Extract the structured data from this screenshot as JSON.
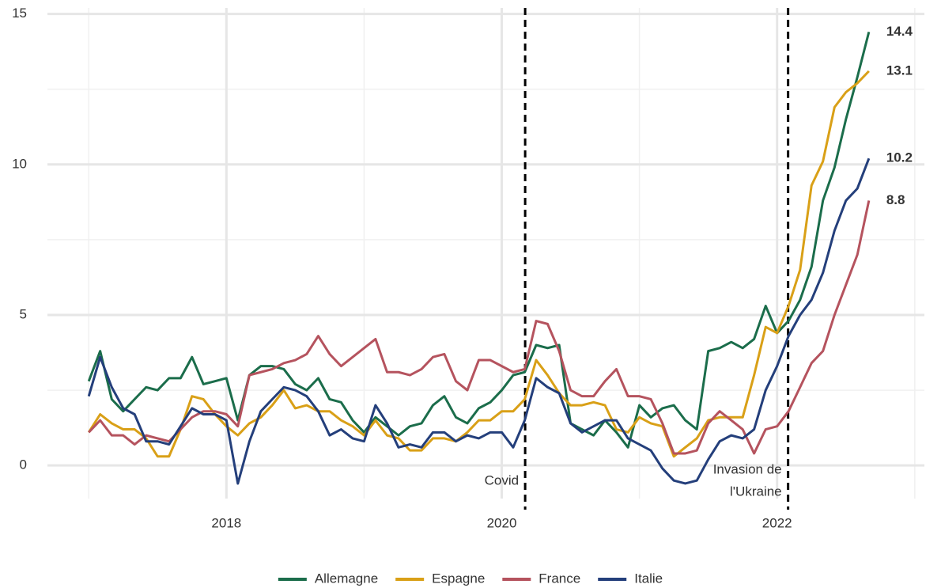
{
  "chart_data": {
    "type": "line",
    "x": [
      2017,
      2017.083,
      2017.167,
      2017.25,
      2017.333,
      2017.417,
      2017.5,
      2017.583,
      2017.667,
      2017.75,
      2017.833,
      2017.917,
      2018,
      2018.083,
      2018.167,
      2018.25,
      2018.333,
      2018.417,
      2018.5,
      2018.583,
      2018.667,
      2018.75,
      2018.833,
      2018.917,
      2019,
      2019.083,
      2019.167,
      2019.25,
      2019.333,
      2019.417,
      2019.5,
      2019.583,
      2019.667,
      2019.75,
      2019.833,
      2019.917,
      2020,
      2020.083,
      2020.167,
      2020.25,
      2020.333,
      2020.417,
      2020.5,
      2020.583,
      2020.667,
      2020.75,
      2020.833,
      2020.917,
      2021,
      2021.083,
      2021.167,
      2021.25,
      2021.333,
      2021.417,
      2021.5,
      2021.583,
      2021.667,
      2021.75,
      2021.833,
      2021.917,
      2022,
      2022.083,
      2022.167,
      2022.25,
      2022.333,
      2022.417,
      2022.5,
      2022.583,
      2022.667
    ],
    "series": [
      {
        "name": "Allemagne",
        "color": "#1b6d4b",
        "values": [
          2.8,
          3.8,
          2.2,
          1.8,
          2.2,
          2.6,
          2.5,
          2.9,
          2.9,
          3.6,
          2.7,
          2.8,
          2.9,
          1.5,
          3.0,
          3.3,
          3.3,
          3.2,
          2.7,
          2.5,
          2.9,
          2.2,
          2.1,
          1.5,
          1.1,
          1.6,
          1.3,
          1.0,
          1.3,
          1.4,
          2.0,
          2.3,
          1.6,
          1.4,
          1.9,
          2.1,
          2.5,
          3.0,
          3.1,
          4.0,
          3.9,
          4.0,
          1.4,
          1.2,
          1.0,
          1.5,
          1.1,
          0.6,
          2.0,
          1.6,
          1.9,
          2.0,
          1.5,
          1.2,
          3.8,
          3.9,
          4.1,
          3.9,
          4.2,
          5.3,
          4.4,
          4.8,
          5.5,
          6.6,
          8.8,
          9.9,
          11.5,
          12.9,
          14.4
        ]
      },
      {
        "name": "Espagne",
        "color": "#d9a017",
        "values": [
          1.1,
          1.7,
          1.4,
          1.2,
          1.2,
          0.9,
          0.3,
          0.3,
          1.2,
          2.3,
          2.2,
          1.7,
          1.3,
          1.0,
          1.4,
          1.6,
          2.0,
          2.5,
          1.9,
          2.0,
          1.8,
          1.8,
          1.5,
          1.3,
          1.0,
          1.5,
          1.0,
          0.9,
          0.5,
          0.5,
          0.9,
          0.9,
          0.8,
          1.1,
          1.5,
          1.5,
          1.8,
          1.8,
          2.2,
          3.5,
          3.0,
          2.4,
          2.0,
          2.0,
          2.1,
          2.0,
          1.2,
          1.1,
          1.6,
          1.4,
          1.3,
          0.3,
          0.6,
          0.9,
          1.5,
          1.6,
          1.6,
          1.6,
          3.0,
          4.6,
          4.4,
          5.3,
          6.5,
          9.3,
          10.1,
          11.9,
          12.4,
          12.7,
          13.1
        ]
      },
      {
        "name": "France",
        "color": "#b5535e",
        "values": [
          1.1,
          1.5,
          1.0,
          1.0,
          0.7,
          1.0,
          0.9,
          0.8,
          1.2,
          1.6,
          1.8,
          1.8,
          1.7,
          1.3,
          3.0,
          3.1,
          3.2,
          3.4,
          3.5,
          3.7,
          4.3,
          3.7,
          3.3,
          3.6,
          3.9,
          4.2,
          3.1,
          3.1,
          3.0,
          3.2,
          3.6,
          3.7,
          2.8,
          2.5,
          3.5,
          3.5,
          3.3,
          3.1,
          3.2,
          4.8,
          4.7,
          3.8,
          2.5,
          2.3,
          2.3,
          2.8,
          3.2,
          2.3,
          2.3,
          2.2,
          1.4,
          0.4,
          0.4,
          0.5,
          1.4,
          1.8,
          1.5,
          1.2,
          0.4,
          1.2,
          1.3,
          1.8,
          2.6,
          3.4,
          3.8,
          5.0,
          6.0,
          7.0,
          8.8
        ]
      },
      {
        "name": "Italie",
        "color": "#243f7b",
        "values": [
          2.3,
          3.6,
          2.6,
          1.9,
          1.7,
          0.8,
          0.8,
          0.7,
          1.3,
          1.9,
          1.7,
          1.7,
          1.5,
          -0.6,
          0.8,
          1.8,
          2.2,
          2.6,
          2.5,
          2.3,
          1.8,
          1.0,
          1.2,
          0.9,
          0.8,
          2.0,
          1.4,
          0.6,
          0.7,
          0.6,
          1.1,
          1.1,
          0.8,
          1.0,
          0.9,
          1.1,
          1.1,
          0.6,
          1.5,
          2.9,
          2.6,
          2.4,
          1.4,
          1.1,
          1.3,
          1.5,
          1.5,
          0.9,
          0.7,
          0.5,
          -0.1,
          -0.5,
          -0.6,
          -0.5,
          0.2,
          0.8,
          1.0,
          0.9,
          1.2,
          2.5,
          3.3,
          4.3,
          5.0,
          5.5,
          6.4,
          7.8,
          8.8,
          9.2,
          10.2
        ]
      }
    ],
    "xlim": [
      2016.7,
      2023.07
    ],
    "xticks": [
      2018,
      2020,
      2022
    ],
    "xminor": [
      2017,
      2019,
      2021,
      2023
    ],
    "ylim": [
      -1.1,
      15.2
    ],
    "yticks": [
      0,
      5,
      10,
      15
    ],
    "yminor": [
      2.5,
      7.5,
      12.5
    ],
    "grid": true,
    "legend": "bottom",
    "annotations": [
      {
        "x": 2020.17,
        "label": [
          "Covid"
        ]
      },
      {
        "x": 2022.08,
        "label": [
          "Invasion de",
          "l'Ukraine"
        ]
      }
    ]
  }
}
